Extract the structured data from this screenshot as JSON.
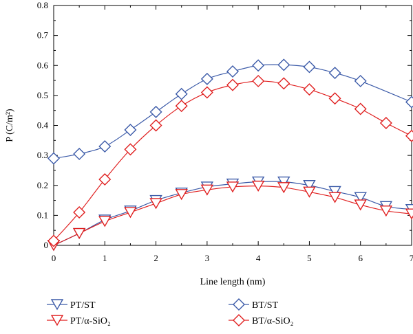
{
  "chart_data": {
    "type": "line",
    "xlabel": "Line length (nm)",
    "ylabel": "P (C/m²)",
    "xlim": [
      0,
      7
    ],
    "ylim": [
      0,
      0.8
    ],
    "xticks": [
      "0",
      "1",
      "2",
      "3",
      "4",
      "5",
      "6",
      "7"
    ],
    "yticks": [
      "0",
      "0.1",
      "0.2",
      "0.3",
      "0.4",
      "0.5",
      "0.6",
      "0.7",
      "0.8"
    ],
    "grid": false,
    "legend_position": "below",
    "series": [
      {
        "name": "PT/ST",
        "color": "#3b5aa8",
        "marker": "triangle-down",
        "x": [
          0,
          0.5,
          1,
          1.5,
          2,
          2.5,
          3,
          3.5,
          4,
          4.5,
          5,
          5.5,
          6,
          6.5,
          7
        ],
        "values": [
          0,
          0.04,
          0.085,
          0.115,
          0.15,
          0.175,
          0.195,
          0.205,
          0.212,
          0.212,
          0.2,
          0.18,
          0.16,
          0.13,
          0.12
        ]
      },
      {
        "name": "PT/α-SiO₂",
        "color": "#e02020",
        "marker": "triangle-down",
        "x": [
          0,
          0.5,
          1,
          1.5,
          2,
          2.5,
          3,
          3.5,
          4,
          4.5,
          5,
          5.5,
          6,
          6.5,
          7
        ],
        "values": [
          0,
          0.04,
          0.08,
          0.11,
          0.14,
          0.17,
          0.185,
          0.195,
          0.198,
          0.193,
          0.178,
          0.16,
          0.135,
          0.115,
          0.105
        ]
      },
      {
        "name": "BT/ST",
        "color": "#3b5aa8",
        "marker": "diamond",
        "x": [
          0,
          0.5,
          1,
          1.5,
          2,
          2.5,
          3,
          3.5,
          4,
          4.5,
          5,
          5.5,
          6,
          6.5,
          7
        ],
        "values": [
          0.29,
          0.305,
          0.33,
          0.385,
          0.445,
          0.505,
          0.555,
          0.58,
          0.6,
          0.602,
          0.595,
          0.575,
          0.548,
          null,
          0.478
        ]
      },
      {
        "name": "BT/α-SiO₂",
        "color": "#e02020",
        "marker": "diamond",
        "x": [
          0,
          0.5,
          1,
          1.5,
          2,
          2.5,
          3,
          3.5,
          4,
          4.5,
          5,
          5.5,
          6,
          6.5,
          7
        ],
        "values": [
          0.015,
          0.11,
          0.22,
          0.32,
          0.4,
          0.465,
          0.51,
          0.535,
          0.548,
          0.54,
          0.52,
          0.49,
          0.455,
          0.408,
          0.365
        ]
      }
    ]
  }
}
